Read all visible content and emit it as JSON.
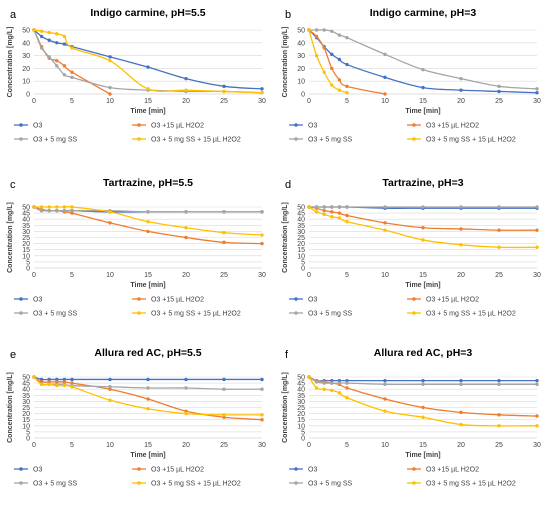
{
  "colors": {
    "O3": "#4472C4",
    "O3 +15 µL H2O2": "#ED7D31",
    "O3 + 5 mg SS": "#A5A5A5",
    "O3 + 5 mg SS + 15 µL H2O2": "#FFC000"
  },
  "chart_data": [
    {
      "type": "line",
      "letter": "a",
      "title": "Indigo carmine, pH=5.5",
      "xlabel": "Time [min]",
      "ylabel": "Concentration [mg/L]",
      "xlim": [
        0,
        30
      ],
      "ylim": [
        0,
        50
      ],
      "xticks": [
        0,
        5,
        10,
        15,
        20,
        25,
        30
      ],
      "yticks": [
        0,
        10,
        20,
        30,
        40,
        50
      ],
      "grid": true,
      "legend": "bottom",
      "series": [
        {
          "name": "O3",
          "x": [
            0,
            1,
            2,
            3,
            4,
            5,
            10,
            15,
            20,
            25,
            30
          ],
          "y": [
            50,
            45,
            42,
            40,
            39,
            37,
            29,
            21,
            12,
            6,
            4
          ]
        },
        {
          "name": "O3 +15 µL H2O2",
          "x": [
            0,
            1,
            2,
            3,
            4,
            5,
            10
          ],
          "y": [
            50,
            37,
            28,
            26,
            22,
            17,
            0
          ]
        },
        {
          "name": "O3 + 5 mg SS",
          "x": [
            0,
            1,
            2,
            3,
            4,
            5,
            10,
            15,
            20,
            25,
            30
          ],
          "y": [
            50,
            36,
            29,
            22,
            15,
            13,
            5,
            3,
            2,
            2,
            1
          ]
        },
        {
          "name": "O3 + 5 mg SS + 15 µL H2O2",
          "x": [
            0,
            1,
            2,
            3,
            4,
            5,
            10,
            15,
            20,
            25,
            30
          ],
          "y": [
            50,
            49,
            48,
            47,
            45,
            36,
            26,
            4,
            3,
            2,
            1
          ]
        }
      ]
    },
    {
      "type": "line",
      "letter": "b",
      "title": "Indigo carmine, pH=3",
      "xlabel": "Time [min]",
      "ylabel": "Concentration [mg/L]",
      "xlim": [
        0,
        30
      ],
      "ylim": [
        0,
        50
      ],
      "xticks": [
        0,
        5,
        10,
        15,
        20,
        25,
        30
      ],
      "yticks": [
        0,
        10,
        20,
        30,
        40,
        50
      ],
      "grid": true,
      "legend": "bottom",
      "series": [
        {
          "name": "O3",
          "x": [
            0,
            1,
            2,
            3,
            4,
            5,
            10,
            15,
            20,
            25,
            30
          ],
          "y": [
            50,
            44,
            37,
            31,
            27,
            23,
            13,
            5,
            3,
            2,
            1
          ]
        },
        {
          "name": "O3 +15 µL H2O2",
          "x": [
            0,
            1,
            2,
            3,
            4,
            5,
            10
          ],
          "y": [
            50,
            45,
            36,
            20,
            11,
            6,
            0
          ]
        },
        {
          "name": "O3 + 5 mg SS",
          "x": [
            0,
            1,
            2,
            3,
            4,
            5,
            10,
            15,
            20,
            25,
            30
          ],
          "y": [
            50,
            50,
            50,
            49,
            46,
            44,
            31,
            19,
            12,
            6,
            4
          ]
        },
        {
          "name": "O3 + 5 mg SS + 15 µL H2O2",
          "x": [
            0,
            1,
            2,
            3,
            4,
            5
          ],
          "y": [
            50,
            30,
            17,
            7,
            3,
            1
          ]
        }
      ]
    },
    {
      "type": "line",
      "letter": "c",
      "title": "Tartrazine, pH=5.5",
      "xlabel": "Time [min]",
      "ylabel": "Concentration [mg/L]",
      "xlim": [
        0,
        30
      ],
      "ylim": [
        0,
        50
      ],
      "xticks": [
        0,
        5,
        10,
        15,
        20,
        25,
        30
      ],
      "yticks": [
        0,
        5,
        10,
        15,
        20,
        25,
        30,
        35,
        40,
        45,
        50
      ],
      "grid": true,
      "legend": "bottom",
      "series": [
        {
          "name": "O3",
          "x": [
            0,
            1,
            2,
            3,
            4,
            5,
            10,
            15,
            20,
            25,
            30
          ],
          "y": [
            50,
            47,
            47,
            47,
            47,
            47,
            46,
            46,
            46,
            46,
            46
          ]
        },
        {
          "name": "O3 +15 µL H2O2",
          "x": [
            0,
            1,
            2,
            3,
            4,
            5,
            10,
            15,
            20,
            25,
            30
          ],
          "y": [
            50,
            48,
            47,
            47,
            46,
            45,
            37,
            30,
            25,
            21,
            20
          ]
        },
        {
          "name": "O3 + 5 mg SS",
          "x": [
            0,
            1,
            2,
            3,
            4,
            5,
            10,
            15,
            20,
            25,
            30
          ],
          "y": [
            50,
            47,
            47,
            47,
            47,
            47,
            47,
            46,
            46,
            46,
            46
          ]
        },
        {
          "name": "O3 + 5 mg SS + 15 µL H2O2",
          "x": [
            0,
            1,
            2,
            3,
            4,
            5,
            10,
            15,
            20,
            25,
            30
          ],
          "y": [
            50,
            50,
            50,
            50,
            50,
            50,
            46,
            38,
            33,
            29,
            27
          ]
        }
      ]
    },
    {
      "type": "line",
      "letter": "d",
      "title": "Tartrazine, pH=3",
      "xlabel": "Time [min]",
      "ylabel": "Concentration [mg/L]",
      "xlim": [
        0,
        30
      ],
      "ylim": [
        0,
        50
      ],
      "xticks": [
        0,
        5,
        10,
        15,
        20,
        25,
        30
      ],
      "yticks": [
        0,
        5,
        10,
        15,
        20,
        25,
        30,
        35,
        40,
        45,
        50
      ],
      "grid": true,
      "legend": "bottom",
      "series": [
        {
          "name": "O3",
          "x": [
            0,
            1,
            2,
            3,
            4,
            5,
            10,
            15,
            20,
            25,
            30
          ],
          "y": [
            50,
            50,
            50,
            50,
            50,
            50,
            49,
            49,
            49,
            49,
            49
          ]
        },
        {
          "name": "O3 +15 µL H2O2",
          "x": [
            0,
            1,
            2,
            3,
            4,
            5,
            10,
            15,
            20,
            25,
            30
          ],
          "y": [
            50,
            49,
            47,
            46,
            45,
            43,
            37,
            33,
            32,
            31,
            31
          ]
        },
        {
          "name": "O3 + 5 mg SS",
          "x": [
            0,
            1,
            2,
            3,
            4,
            5,
            10,
            15,
            20,
            25,
            30
          ],
          "y": [
            50,
            50,
            50,
            50,
            50,
            50,
            50,
            50,
            50,
            50,
            50
          ]
        },
        {
          "name": "O3 + 5 mg SS + 15 µL H2O2",
          "x": [
            0,
            1,
            2,
            3,
            4,
            5,
            10,
            15,
            20,
            25,
            30
          ],
          "y": [
            50,
            46,
            44,
            42,
            41,
            38,
            31,
            23,
            19,
            17,
            17
          ]
        }
      ]
    },
    {
      "type": "line",
      "letter": "e",
      "title": "Allura red AC, pH=5.5",
      "xlabel": "Time [min]",
      "ylabel": "Concentration [mg/L]",
      "xlim": [
        0,
        30
      ],
      "ylim": [
        0,
        50
      ],
      "xticks": [
        0,
        5,
        10,
        15,
        20,
        25,
        30
      ],
      "yticks": [
        0,
        5,
        10,
        15,
        20,
        25,
        30,
        35,
        40,
        45,
        50
      ],
      "grid": true,
      "legend": "bottom",
      "series": [
        {
          "name": "O3",
          "x": [
            0,
            1,
            2,
            3,
            4,
            5,
            10,
            15,
            20,
            25,
            30
          ],
          "y": [
            50,
            48,
            48,
            48,
            48,
            48,
            48,
            48,
            48,
            48,
            48
          ]
        },
        {
          "name": "O3 +15 µL H2O2",
          "x": [
            0,
            1,
            2,
            3,
            4,
            5,
            10,
            15,
            20,
            25,
            30
          ],
          "y": [
            50,
            46,
            46,
            46,
            46,
            45,
            40,
            32,
            22,
            17,
            15
          ]
        },
        {
          "name": "O3 + 5 mg SS",
          "x": [
            0,
            1,
            2,
            3,
            4,
            5,
            10,
            15,
            20,
            25,
            30
          ],
          "y": [
            50,
            44,
            44,
            44,
            44,
            43,
            42,
            41,
            41,
            40,
            40
          ]
        },
        {
          "name": "O3 + 5 mg SS + 15 µL H2O2",
          "x": [
            0,
            1,
            2,
            3,
            4,
            5,
            10,
            15,
            20,
            25,
            30
          ],
          "y": [
            50,
            44,
            44,
            43,
            43,
            42,
            31,
            24,
            20,
            19,
            19
          ]
        }
      ]
    },
    {
      "type": "line",
      "letter": "f",
      "title": "Allura red AC, pH=3",
      "xlabel": "Time [min]",
      "ylabel": "Concentration [mg/L]",
      "xlim": [
        0,
        30
      ],
      "ylim": [
        0,
        50
      ],
      "xticks": [
        0,
        5,
        10,
        15,
        20,
        25,
        30
      ],
      "yticks": [
        0,
        5,
        10,
        15,
        20,
        25,
        30,
        35,
        40,
        45,
        50
      ],
      "grid": true,
      "legend": "bottom",
      "series": [
        {
          "name": "O3",
          "x": [
            0,
            1,
            2,
            3,
            4,
            5,
            10,
            15,
            20,
            25,
            30
          ],
          "y": [
            50,
            47,
            47,
            47,
            47,
            47,
            47,
            47,
            47,
            47,
            47
          ]
        },
        {
          "name": "O3 +15 µL H2O2",
          "x": [
            0,
            1,
            2,
            3,
            4,
            5,
            10,
            15,
            20,
            25,
            30
          ],
          "y": [
            50,
            47,
            46,
            45,
            44,
            41,
            32,
            25,
            21,
            19,
            18
          ]
        },
        {
          "name": "O3 + 5 mg SS",
          "x": [
            0,
            1,
            2,
            3,
            4,
            5,
            10,
            15,
            20,
            25,
            30
          ],
          "y": [
            50,
            46,
            45,
            45,
            45,
            45,
            44,
            44,
            44,
            44,
            44
          ]
        },
        {
          "name": "O3 + 5 mg SS + 15 µL H2O2",
          "x": [
            0,
            1,
            2,
            3,
            4,
            5,
            10,
            15,
            20,
            25,
            30
          ],
          "y": [
            50,
            41,
            40,
            39,
            37,
            33,
            22,
            17,
            11,
            10,
            10
          ]
        }
      ]
    }
  ]
}
